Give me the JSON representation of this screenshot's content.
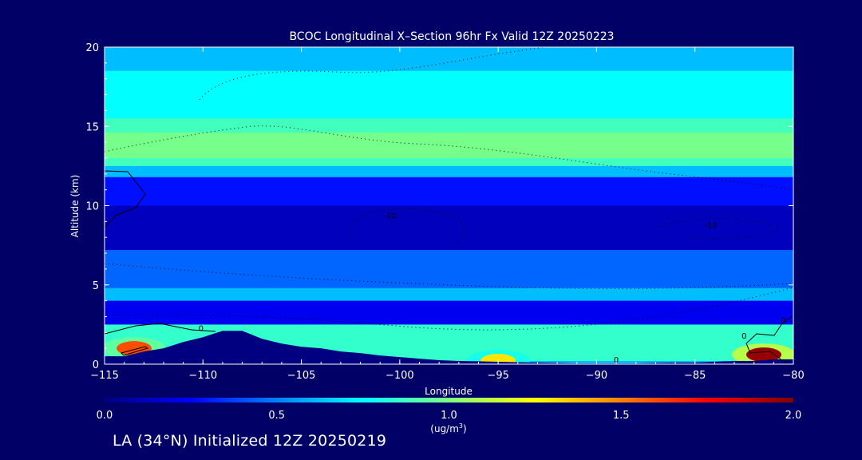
{
  "chart_data": {
    "type": "heatmap",
    "title": "BCOC Longitudinal X–Section 96hr  Fx Valid 12Z 20250223",
    "xlabel": "Longitude",
    "ylabel": "Altitude (km)",
    "xlim": [
      -115,
      -80
    ],
    "ylim": [
      0,
      20
    ],
    "xticks": [
      -115,
      -110,
      -105,
      -100,
      -95,
      -90,
      -85,
      -80
    ],
    "xtick_labels": [
      "−115",
      "−110",
      "−105",
      "−100",
      "−95",
      "−90",
      "−85",
      "−80"
    ],
    "yticks": [
      0,
      5,
      10,
      15,
      20
    ],
    "ytick_labels": [
      "0",
      "5",
      "10",
      "15",
      "20"
    ],
    "colorbar": {
      "min": 0.0,
      "max": 2.0,
      "ticks": [
        "0.0",
        "0.5",
        "1.0",
        "1.5",
        "2.0"
      ],
      "unit_line1": "(ug/m",
      "unit_sup": "3",
      "unit_line2": ")",
      "colors": [
        "#000080",
        "#0000ff",
        "#0080ff",
        "#00ffff",
        "#80ff80",
        "#ffff00",
        "#ff8000",
        "#ff0000",
        "#800000"
      ]
    },
    "contour_labels": [
      {
        "text": "0",
        "x": -110.1,
        "y": 2.1
      },
      {
        "text": "-10",
        "x": -100.5,
        "y": 9.2
      },
      {
        "text": "-10",
        "x": -84.2,
        "y": 8.6
      },
      {
        "text": "0",
        "x": -89.0,
        "y": 0.1
      },
      {
        "text": "0",
        "x": -82.5,
        "y": 1.6
      },
      {
        "text": "0",
        "x": -80.5,
        "y": 2.6
      }
    ],
    "terrain": [
      [
        -115,
        0.5
      ],
      [
        -114,
        0.5
      ],
      [
        -113,
        0.8
      ],
      [
        -112,
        1.0
      ],
      [
        -111,
        1.4
      ],
      [
        -110,
        1.7
      ],
      [
        -109,
        2.1
      ],
      [
        -108,
        2.1
      ],
      [
        -107,
        1.6
      ],
      [
        -106,
        1.3
      ],
      [
        -105,
        1.1
      ],
      [
        -104,
        1.0
      ],
      [
        -103,
        0.8
      ],
      [
        -102,
        0.7
      ],
      [
        -101,
        0.55
      ],
      [
        -100,
        0.45
      ],
      [
        -99,
        0.35
      ],
      [
        -98,
        0.25
      ],
      [
        -97,
        0.2
      ],
      [
        -96,
        0.18
      ],
      [
        -95,
        0.15
      ],
      [
        -94,
        0.12
      ],
      [
        -93,
        0.1
      ],
      [
        -92,
        0.08
      ],
      [
        -91,
        0.05
      ],
      [
        -90,
        0.05
      ],
      [
        -89,
        0.05
      ],
      [
        -88,
        0.05
      ],
      [
        -87,
        0.08
      ],
      [
        -86,
        0.1
      ],
      [
        -85,
        0.1
      ],
      [
        -84,
        0.15
      ],
      [
        -83,
        0.2
      ],
      [
        -82,
        0.2
      ],
      [
        -81,
        0.3
      ],
      [
        -80,
        0.3
      ]
    ],
    "concentration_layers": [
      {
        "value": 0.62,
        "y_bottom": 0,
        "y_top": 20
      },
      {
        "value": 0.75,
        "y_bottom": 14.5,
        "y_top": 18.5
      },
      {
        "value": 0.88,
        "y_bottom": 12.5,
        "y_top": 15.5
      },
      {
        "value": 0.98,
        "y_bottom": 13.0,
        "y_top": 14.6
      },
      {
        "value": 0.28,
        "y_bottom": 5.5,
        "y_top": 11.8
      },
      {
        "value": 0.12,
        "y_bottom": 7.0,
        "y_top": 10.0
      },
      {
        "value": 0.45,
        "y_bottom": 4.8,
        "y_top": 7.2
      },
      {
        "value": 0.22,
        "y_bottom": 0.8,
        "y_top": 4.0
      },
      {
        "value": 0.85,
        "y_bottom": 0.2,
        "y_top": 2.5
      }
    ],
    "hotspots": [
      {
        "x": -113.5,
        "y": 1.0,
        "value": 1.6
      },
      {
        "x": -81.5,
        "y": 0.6,
        "value": 1.95
      },
      {
        "x": -95.0,
        "y": 0.2,
        "value": 1.3
      }
    ]
  },
  "footer": {
    "text": "LA (34°N) Initialized 12Z 20250219"
  }
}
